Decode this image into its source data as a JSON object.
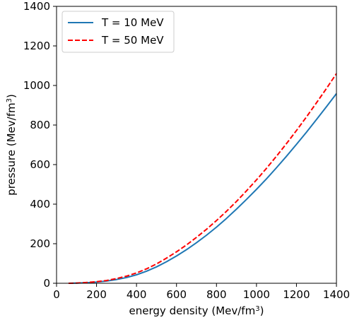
{
  "chart_data": {
    "type": "line",
    "xlabel": {
      "text": "energy density (Mev/fm",
      "sup": "3",
      "close": ")"
    },
    "ylabel": {
      "text": "pressure (Mev/fm",
      "sup": "3",
      "close": ")"
    },
    "xlim": [
      0,
      1400
    ],
    "ylim": [
      0,
      1400
    ],
    "xticks": [
      0,
      200,
      400,
      600,
      800,
      1000,
      1200,
      1400
    ],
    "yticks": [
      0,
      200,
      400,
      600,
      800,
      1000,
      1200,
      1400
    ],
    "grid": false,
    "legend_position": "top-left",
    "series": [
      {
        "name": "T = 10 MeV",
        "color": "#1f77b4",
        "style": "solid",
        "x": [
          60,
          100,
          150,
          200,
          250,
          300,
          350,
          400,
          450,
          500,
          550,
          600,
          650,
          700,
          750,
          800,
          850,
          900,
          950,
          1000,
          1050,
          1100,
          1150,
          1200,
          1250,
          1300,
          1350,
          1400
        ],
        "y": [
          0,
          1,
          3,
          6,
          11,
          19,
          29,
          43,
          61,
          83,
          109,
          138,
          170,
          205,
          243,
          284,
          328,
          375,
          424,
          475,
          528,
          584,
          642,
          702,
          764,
          828,
          893,
          959
        ]
      },
      {
        "name": "T = 50 MeV",
        "color": "#ff0000",
        "style": "dashed",
        "x": [
          60,
          100,
          150,
          200,
          250,
          300,
          350,
          400,
          450,
          500,
          550,
          600,
          650,
          700,
          750,
          800,
          850,
          900,
          950,
          1000,
          1050,
          1100,
          1150,
          1200,
          1250,
          1300,
          1350,
          1400
        ],
        "y": [
          0,
          1,
          4,
          8,
          14,
          24,
          36,
          52,
          73,
          98,
          127,
          159,
          194,
          232,
          273,
          317,
          364,
          414,
          467,
          523,
          581,
          642,
          706,
          772,
          841,
          912,
          985,
          1060
        ]
      }
    ]
  }
}
